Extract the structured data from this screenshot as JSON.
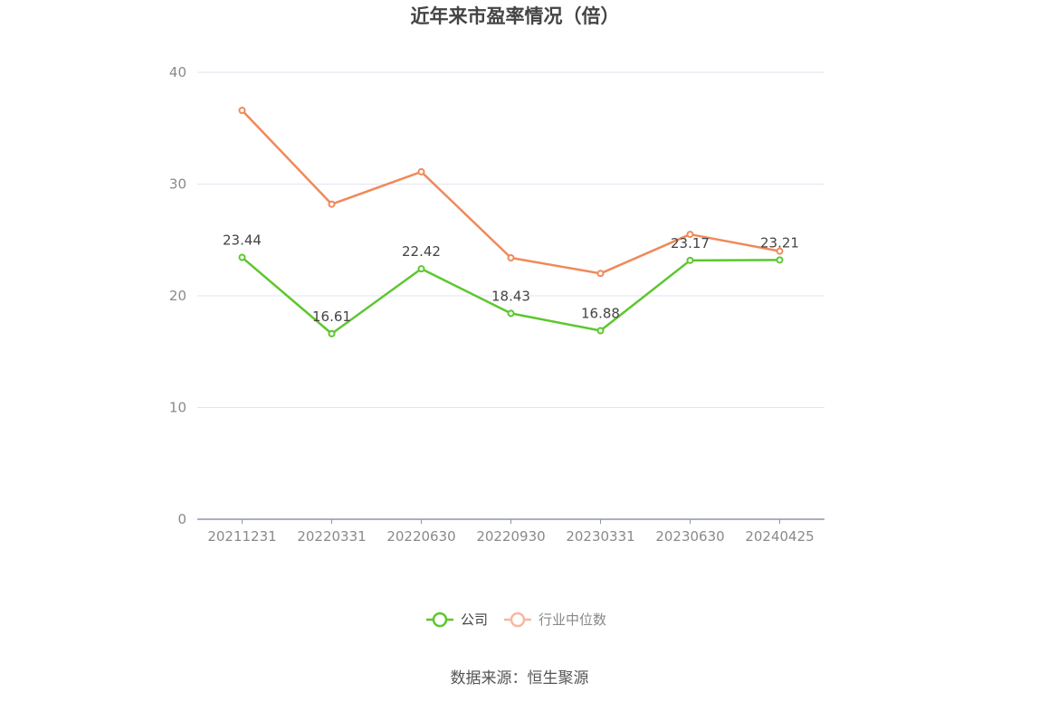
{
  "chart_data": {
    "type": "line",
    "title": "近年来市盈率情况（倍）",
    "categories": [
      "20211231",
      "20220331",
      "20220630",
      "20220930",
      "20230331",
      "20230630",
      "20240425"
    ],
    "ylim": [
      0,
      40
    ],
    "yticks": [
      0,
      10,
      20,
      30,
      40
    ],
    "grid": true,
    "legend_position": "bottom",
    "series": [
      {
        "name": "公司",
        "color": "#5cc72e",
        "values": [
          23.44,
          16.61,
          22.42,
          18.43,
          16.88,
          23.17,
          23.21
        ],
        "labels": [
          "23.44",
          "16.61",
          "22.42",
          "18.43",
          "16.88",
          "23.17",
          "23.21"
        ]
      },
      {
        "name": "行业中位数",
        "color": "#f0895a",
        "legend_color": "#f6b8a0",
        "values": [
          36.6,
          28.2,
          31.1,
          23.4,
          22.0,
          25.5,
          24.0
        ]
      }
    ]
  },
  "source": "数据来源：恒生聚源"
}
